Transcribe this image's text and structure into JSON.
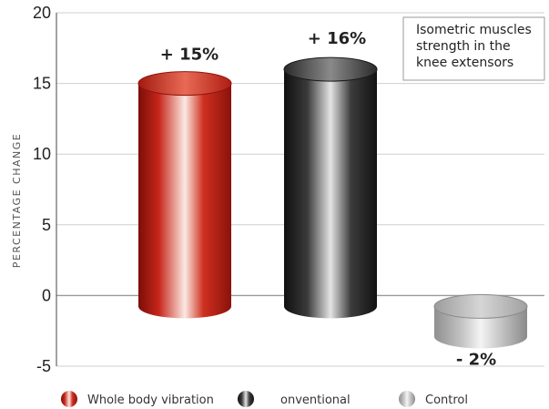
{
  "chart_data": {
    "type": "bar",
    "title": "",
    "ylabel": "PERCENTAGE CHANGE",
    "ylim": [
      -5,
      20
    ],
    "yticks": [
      -5,
      0,
      5,
      10,
      15,
      20
    ],
    "grid": true,
    "categories": [
      "Whole body vibration",
      "onventional",
      "Control"
    ],
    "values": [
      15,
      16,
      -2
    ],
    "data_labels": [
      "+ 15%",
      "+ 16%",
      "- 2%"
    ],
    "colors": [
      "#c0231a",
      "#2b2b2b",
      "#b8b8b8"
    ],
    "annotation": {
      "lines": [
        "Isometric muscles",
        "strength in the",
        "knee extensors"
      ]
    },
    "legend": {
      "position": "bottom",
      "entries": [
        {
          "label": "Whole body vibration",
          "color": "#c0231a",
          "icon": "red-cylinder-icon"
        },
        {
          "label": "onventional",
          "color": "#2b2b2b",
          "icon": "black-cylinder-icon"
        },
        {
          "label": "Control",
          "color": "#b8b8b8",
          "icon": "grey-cylinder-icon"
        }
      ]
    }
  }
}
